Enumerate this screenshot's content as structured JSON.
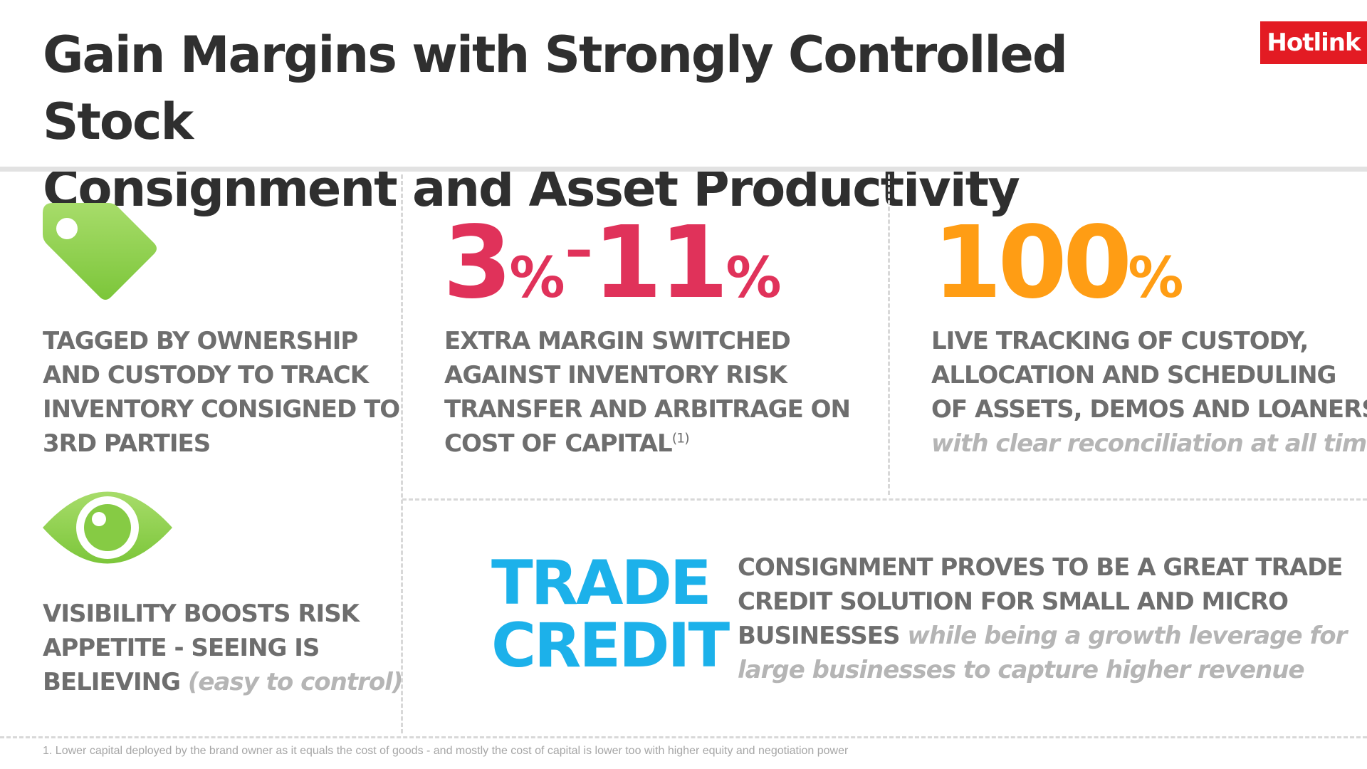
{
  "header": {
    "title_line1": "Gain Margins with Strongly Controlled Stock",
    "title_line2": "Consignment and Asset Productivity",
    "logo_text": "Hotlink"
  },
  "colors": {
    "brand_red": "#e31b23",
    "stat_red": "#e0325a",
    "stat_orange": "#ff9d14",
    "trade_blue": "#1cb1ea",
    "icon_green": "#8cd04a"
  },
  "tag_block": {
    "icon": "price-tag-icon",
    "lines": [
      "TAGGED BY OWNERSHIP",
      "AND CUSTODY TO TRACK",
      "INVENTORY CONSIGNED TO",
      "3RD PARTIES"
    ]
  },
  "eye_block": {
    "icon": "eye-icon",
    "lines": [
      "VISIBILITY BOOSTS RISK",
      "APPETITE - SEEING IS",
      "BELIEVING"
    ],
    "muted": "(easy to control)"
  },
  "margin_block": {
    "stat_low": "3",
    "stat_low_unit": "%",
    "stat_dash": "–",
    "stat_high": "11",
    "stat_high_unit": "%",
    "lines": [
      "EXTRA MARGIN SWITCHED",
      "AGAINST INVENTORY RISK",
      "TRANSFER AND ARBITRAGE ON",
      "COST OF CAPITAL"
    ],
    "footnote_ref": "(1)"
  },
  "tracking_block": {
    "stat": "100",
    "stat_unit": "%",
    "lines": [
      "LIVE TRACKING OF CUSTODY,",
      "ALLOCATION AND SCHEDULING",
      "OF ASSETS, DEMOS AND LOANERS"
    ],
    "muted": "with clear reconciliation at all times"
  },
  "trade_block": {
    "heading_line1": "TRADE",
    "heading_line2": "CREDIT",
    "line1": "CONSIGNMENT PROVES TO BE A GREAT TRADE",
    "line2": "CREDIT SOLUTION FOR SMALL AND MICRO",
    "line3_bold": "BUSINESSES",
    "line3_muted": "while being a growth leverage for",
    "line4_muted": "large businesses to capture higher revenue"
  },
  "footnote": "1.  Lower capital deployed by the brand owner as it equals the cost of goods - and mostly the cost of capital is lower too with higher equity and negotiation power"
}
